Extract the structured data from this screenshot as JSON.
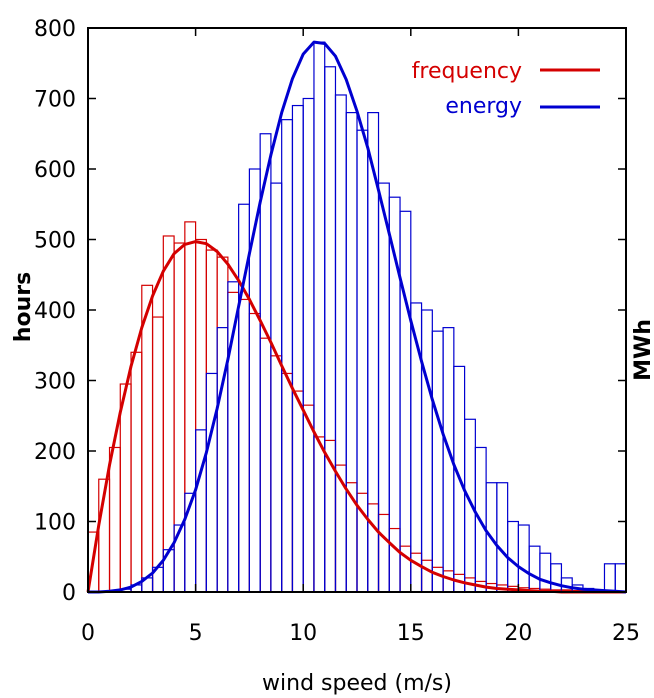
{
  "chart_data": {
    "type": "bar",
    "xlabel": "wind speed (m/s)",
    "ylabel": "hours",
    "y2label": "MWh",
    "xlim": [
      0,
      25
    ],
    "ylim": [
      0,
      800
    ],
    "xticks": [
      0,
      5,
      10,
      15,
      20,
      25
    ],
    "yticks": [
      0,
      100,
      200,
      300,
      400,
      500,
      600,
      700,
      800
    ],
    "bin_width": 0.5,
    "grid": false,
    "legend_position": "top-right",
    "colors": {
      "frequency": "#d40000",
      "energy": "#0000d0"
    },
    "series": [
      {
        "name": "frequency",
        "kind": "histogram",
        "color": "#d40000",
        "x": [
          0.25,
          0.75,
          1.25,
          1.75,
          2.25,
          2.75,
          3.25,
          3.75,
          4.25,
          4.75,
          5.25,
          5.75,
          6.25,
          6.75,
          7.25,
          7.75,
          8.25,
          8.75,
          9.25,
          9.75,
          10.25,
          10.75,
          11.25,
          11.75,
          12.25,
          12.75,
          13.25,
          13.75,
          14.25,
          14.75,
          15.25,
          15.75,
          16.25,
          16.75,
          17.25,
          17.75,
          18.25,
          18.75,
          19.25,
          19.75,
          20.25,
          20.75,
          21.25,
          21.75,
          22.25,
          22.75,
          23.25,
          23.75,
          24.25,
          24.75
        ],
        "values": [
          85,
          160,
          205,
          295,
          340,
          435,
          390,
          505,
          495,
          525,
          500,
          485,
          475,
          425,
          415,
          395,
          360,
          335,
          310,
          285,
          265,
          220,
          215,
          180,
          155,
          140,
          125,
          110,
          90,
          65,
          55,
          45,
          35,
          30,
          25,
          20,
          15,
          12,
          10,
          8,
          6,
          5,
          4,
          3,
          3,
          2,
          2,
          1,
          1,
          1
        ]
      },
      {
        "name": "energy",
        "kind": "histogram",
        "color": "#0000d0",
        "x": [
          0.25,
          0.75,
          1.25,
          1.75,
          2.25,
          2.75,
          3.25,
          3.75,
          4.25,
          4.75,
          5.25,
          5.75,
          6.25,
          6.75,
          7.25,
          7.75,
          8.25,
          8.75,
          9.25,
          9.75,
          10.25,
          10.75,
          11.25,
          11.75,
          12.25,
          12.75,
          13.25,
          13.75,
          14.25,
          14.75,
          15.25,
          15.75,
          16.25,
          16.75,
          17.25,
          17.75,
          18.25,
          18.75,
          19.25,
          19.75,
          20.25,
          20.75,
          21.25,
          21.75,
          22.25,
          22.75,
          23.25,
          23.75,
          24.25,
          24.75
        ],
        "values": [
          0,
          0,
          1,
          4,
          10,
          20,
          35,
          60,
          95,
          140,
          230,
          310,
          375,
          440,
          550,
          600,
          650,
          580,
          670,
          690,
          700,
          780,
          745,
          705,
          680,
          655,
          680,
          580,
          560,
          540,
          410,
          400,
          370,
          375,
          320,
          245,
          205,
          155,
          155,
          100,
          95,
          65,
          55,
          40,
          20,
          10,
          5,
          2,
          40,
          40
        ]
      },
      {
        "name": "frequency",
        "kind": "fit",
        "color": "#d40000",
        "x": [
          0,
          0.5,
          1,
          1.5,
          2,
          2.5,
          3,
          3.5,
          4,
          4.5,
          5,
          5.5,
          6,
          6.5,
          7,
          7.5,
          8,
          8.5,
          9,
          9.5,
          10,
          10.5,
          11,
          11.5,
          12,
          12.5,
          13,
          13.5,
          14,
          14.5,
          15,
          15.5,
          16,
          16.5,
          17,
          17.5,
          18,
          18.5,
          19,
          19.5,
          20,
          20.5,
          21,
          21.5,
          22,
          22.5,
          23,
          23.5,
          24,
          24.5,
          25
        ],
        "values": [
          0,
          95,
          180,
          255,
          320,
          375,
          420,
          455,
          480,
          493,
          497,
          494,
          483,
          465,
          442,
          415,
          385,
          354,
          321,
          289,
          258,
          227,
          198,
          171,
          146,
          123,
          103,
          85,
          70,
          56,
          45,
          36,
          28,
          22,
          17,
          13,
          10,
          7,
          5,
          4,
          3,
          2,
          1,
          1,
          0,
          0,
          0,
          0,
          0,
          0,
          0
        ]
      },
      {
        "name": "energy",
        "kind": "fit",
        "color": "#0000d0",
        "x": [
          0,
          0.5,
          1,
          1.5,
          2,
          2.5,
          3,
          3.5,
          4,
          4.5,
          5,
          5.5,
          6,
          6.5,
          7,
          7.5,
          8,
          8.5,
          9,
          9.5,
          10,
          10.5,
          11,
          11.5,
          12,
          12.5,
          13,
          13.5,
          14,
          14.5,
          15,
          15.5,
          16,
          16.5,
          17,
          17.5,
          18,
          18.5,
          19,
          19.5,
          20,
          20.5,
          21,
          21.5,
          22,
          22.5,
          23,
          23.5,
          24,
          24.5,
          25
        ],
        "values": [
          0,
          0,
          1,
          3,
          7,
          15,
          27,
          45,
          70,
          103,
          145,
          198,
          260,
          330,
          405,
          480,
          553,
          620,
          680,
          728,
          763,
          780,
          778,
          760,
          727,
          682,
          630,
          570,
          508,
          446,
          385,
          327,
          273,
          224,
          181,
          144,
          113,
          87,
          66,
          49,
          36,
          26,
          18,
          13,
          9,
          6,
          4,
          3,
          2,
          1,
          0
        ]
      }
    ]
  }
}
